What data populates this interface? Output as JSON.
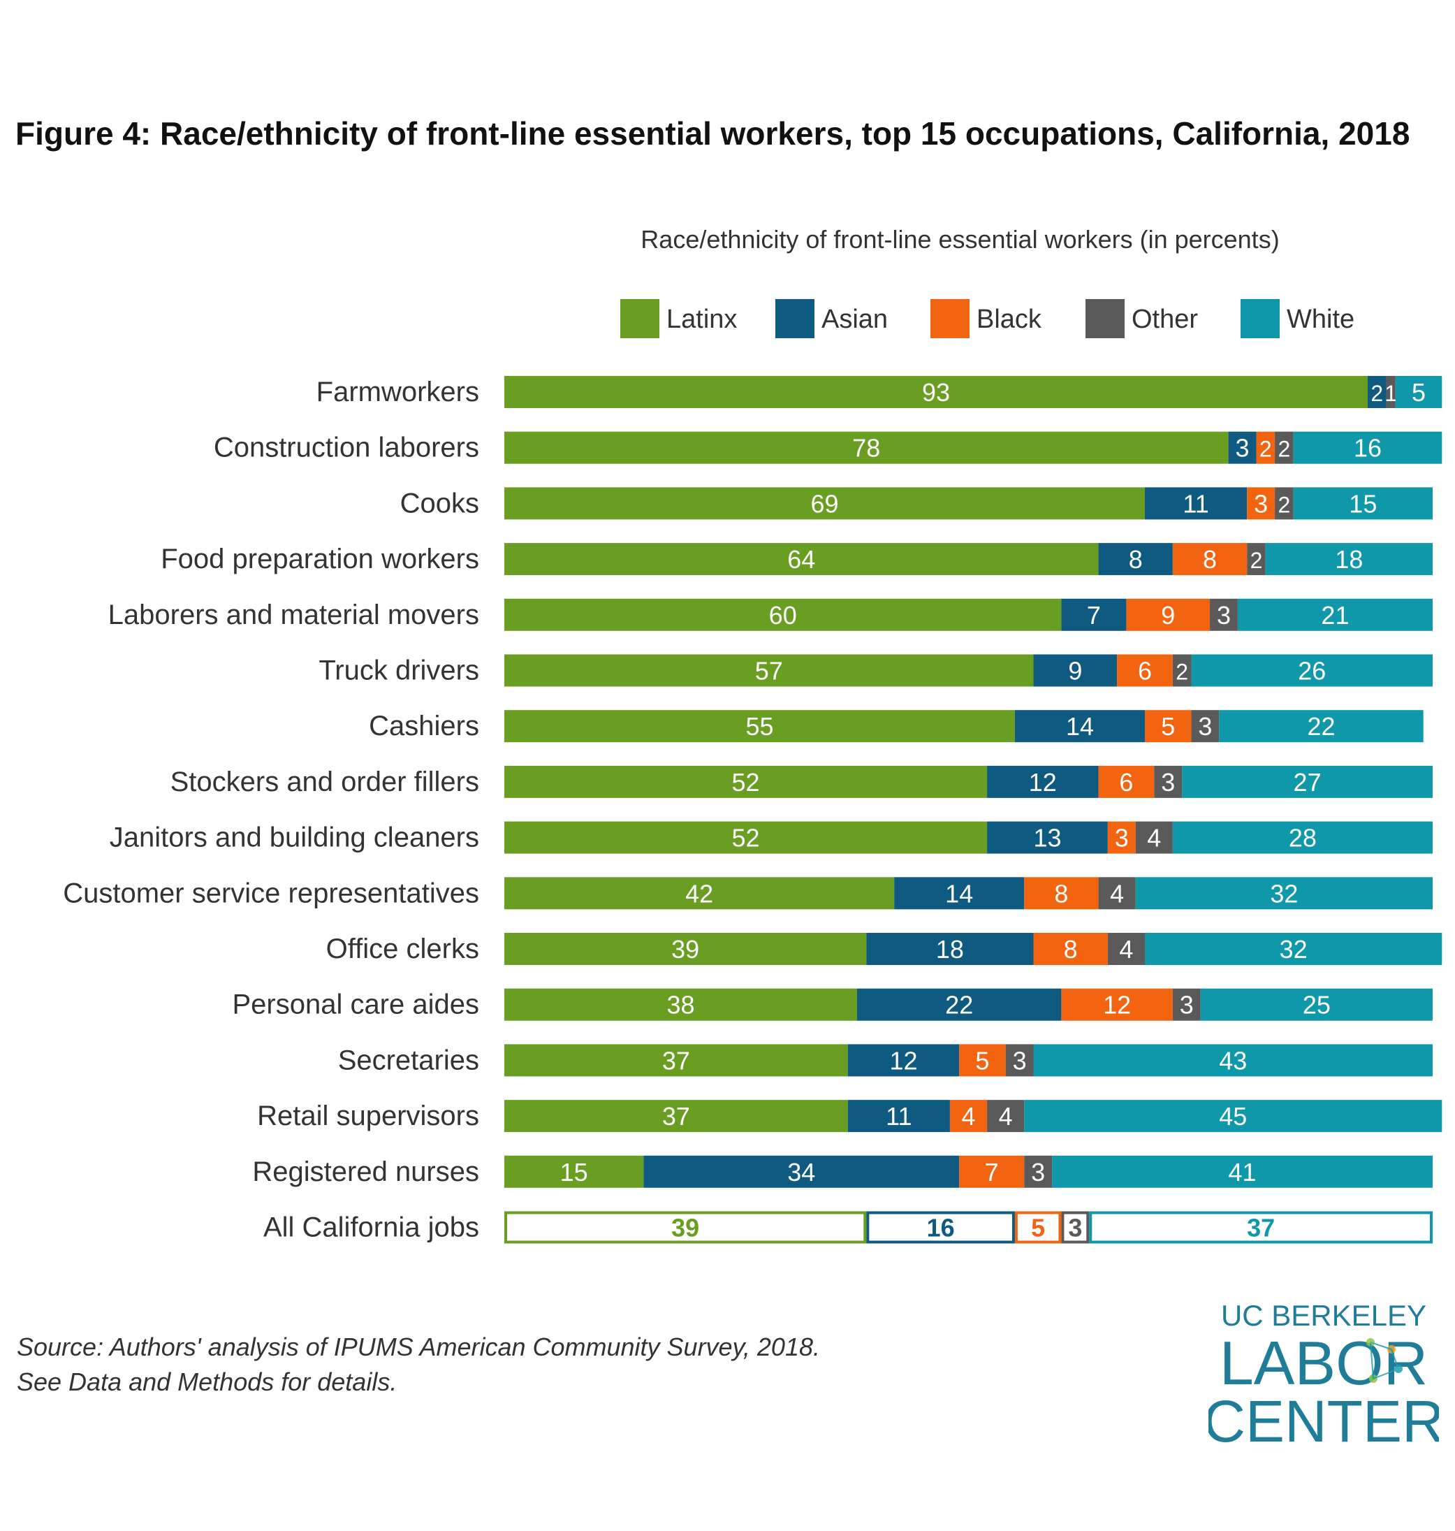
{
  "title": "Figure 4:  Race/ethnicity of front-line essential workers, top 15 occupations, California, 2018",
  "legend": [
    {
      "label": "Latinx",
      "color": "#6a9e22"
    },
    {
      "label": "Asian",
      "color": "#0e5a80"
    },
    {
      "label": "Black",
      "color": "#f36410"
    },
    {
      "label": "Other",
      "color": "#5a5a5a"
    },
    {
      "label": "White",
      "color": "#0f97aa"
    }
  ],
  "chart_data": {
    "type": "bar",
    "orientation": "horizontal",
    "stacked": true,
    "title": "Race/ethnicity of front-line essential workers (in percents)",
    "legend_position": "top",
    "xlim": [
      0,
      100
    ],
    "categories": [
      "Farmworkers",
      "Construction laborers",
      "Cooks",
      "Food preparation workers",
      "Laborers and material movers",
      "Truck drivers",
      "Cashiers",
      "Stockers and order fillers",
      "Janitors and building cleaners",
      "Customer service representatives",
      "Office clerks",
      "Personal care aides",
      "Secretaries",
      "Retail supervisors",
      "Registered nurses",
      "All California jobs"
    ],
    "series": [
      {
        "name": "Latinx",
        "color": "#6a9e22",
        "values": [
          93,
          78,
          69,
          64,
          60,
          57,
          55,
          52,
          52,
          42,
          39,
          38,
          37,
          37,
          15,
          39
        ]
      },
      {
        "name": "Asian",
        "color": "#0e5a80",
        "values": [
          2,
          3,
          11,
          8,
          7,
          9,
          14,
          12,
          13,
          14,
          18,
          22,
          12,
          11,
          34,
          16
        ]
      },
      {
        "name": "Black",
        "color": "#f36410",
        "values": [
          0,
          2,
          3,
          8,
          9,
          6,
          5,
          6,
          3,
          8,
          8,
          12,
          5,
          4,
          7,
          5
        ]
      },
      {
        "name": "Other",
        "color": "#5a5a5a",
        "values": [
          1,
          2,
          2,
          2,
          3,
          2,
          3,
          3,
          4,
          4,
          4,
          3,
          3,
          4,
          3,
          3
        ]
      },
      {
        "name": "White",
        "color": "#0f97aa",
        "values": [
          5,
          16,
          15,
          18,
          21,
          26,
          22,
          27,
          28,
          32,
          32,
          25,
          43,
          45,
          41,
          37
        ]
      }
    ],
    "outlined_categories": [
      "All California jobs"
    ]
  },
  "footnote": {
    "line1": "Source: Authors' analysis of IPUMS American Community Survey, 2018.",
    "line2": "See Data and Methods for details."
  },
  "logo": {
    "line1": "UC BERKELEY",
    "line2": "LABOR",
    "line3": "CENTER"
  }
}
